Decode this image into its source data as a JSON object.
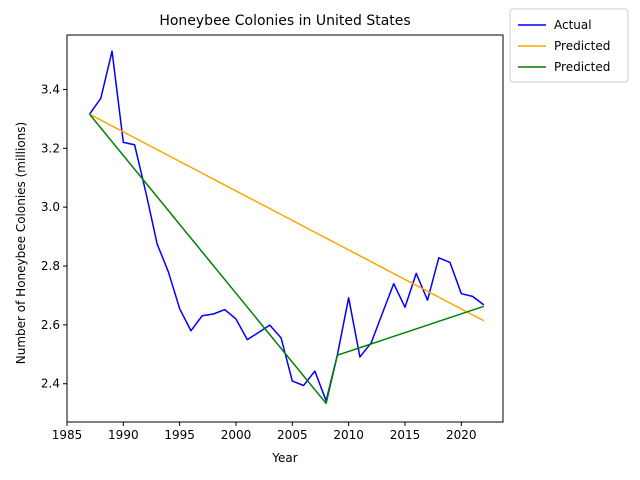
{
  "chart_data": {
    "type": "line",
    "title": "Honeybee Colonies in United States",
    "xlabel": "Year",
    "ylabel": "Number of Honeybee Colonies (millions)",
    "xlim": [
      1985,
      2023.7
    ],
    "ylim": [
      2.27,
      3.585
    ],
    "xticks": [
      1985,
      1990,
      1995,
      2000,
      2005,
      2010,
      2015,
      2020
    ],
    "yticks": [
      2.4,
      2.6,
      2.8,
      3.0,
      3.2,
      3.4
    ],
    "grid": false,
    "legend_position": "outside top-right",
    "series": [
      {
        "name": "Actual",
        "color": "#0000ff",
        "x": [
          1987,
          1988,
          1989,
          1990,
          1991,
          1992,
          1993,
          1994,
          1995,
          1996,
          1997,
          1998,
          1999,
          2000,
          2001,
          2002,
          2003,
          2004,
          2005,
          2006,
          2007,
          2008,
          2009,
          2010,
          2011,
          2012,
          2013,
          2014,
          2015,
          2016,
          2017,
          2018,
          2019,
          2020,
          2021,
          2022
        ],
        "y": [
          3.316,
          3.37,
          3.53,
          3.22,
          3.212,
          3.05,
          2.875,
          2.78,
          2.655,
          2.58,
          2.631,
          2.637,
          2.652,
          2.62,
          2.55,
          2.574,
          2.599,
          2.556,
          2.409,
          2.394,
          2.443,
          2.342,
          2.498,
          2.692,
          2.491,
          2.539,
          2.64,
          2.74,
          2.66,
          2.775,
          2.684,
          2.828,
          2.812,
          2.706,
          2.697,
          2.668
        ]
      },
      {
        "name": "Predicted",
        "color": "#ffa500",
        "x": [
          1987,
          2022
        ],
        "y": [
          3.316,
          2.614
        ]
      },
      {
        "name": "Predicted",
        "color": "#008000",
        "x": [
          1987,
          2008,
          2009,
          2022
        ],
        "y": [
          3.316,
          2.333,
          2.497,
          2.663
        ]
      }
    ]
  }
}
